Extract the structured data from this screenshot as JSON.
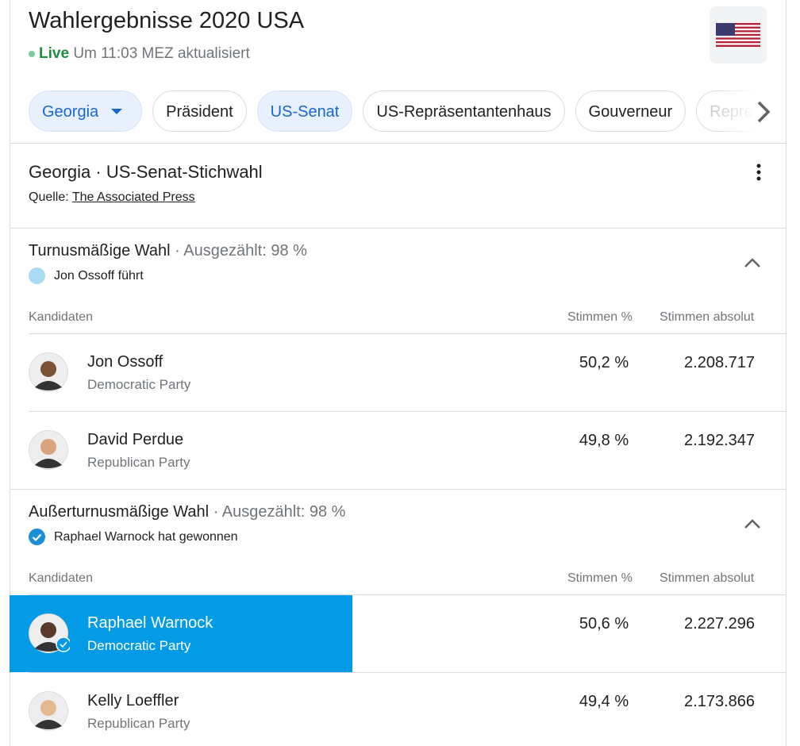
{
  "header": {
    "title": "Wahlergebnisse 2020 USA",
    "live": "Live",
    "updated": "Um 11:03 MEZ aktualisiert"
  },
  "tabs": [
    "Georgia",
    "Präsident",
    "US-Senat",
    "US-Repräsentantenhaus",
    "Gouverneur",
    "Repre"
  ],
  "section": {
    "title": "Georgia · US-Senat-Stichwahl",
    "source_label": "Quelle:",
    "source": "The Associated Press"
  },
  "columns": [
    "Kandidaten",
    "Stimmen %",
    "Stimmen absolut"
  ],
  "races": [
    {
      "title": "Turnusmäßige Wahl",
      "counted": "· Ausgezählt: 98 %",
      "status": "Jon Ossoff führt",
      "candidates": [
        {
          "name": "Jon Ossoff",
          "party": "Democratic Party",
          "percent": "50,2 %",
          "votes": "2.208.717"
        },
        {
          "name": "David Perdue",
          "party": "Republican Party",
          "percent": "49,8 %",
          "votes": "2.192.347"
        }
      ]
    },
    {
      "title": "Außerturnusmäßige Wahl",
      "counted": "· Ausgezählt: 98 %",
      "status": "Raphael Warnock hat gewonnen",
      "candidates": [
        {
          "name": "Raphael Warnock",
          "party": "Democratic Party",
          "percent": "50,6 %",
          "votes": "2.227.296",
          "winner": true
        },
        {
          "name": "Kelly Loeffler",
          "party": "Republican Party",
          "percent": "49,4 %",
          "votes": "2.173.866"
        }
      ]
    }
  ]
}
